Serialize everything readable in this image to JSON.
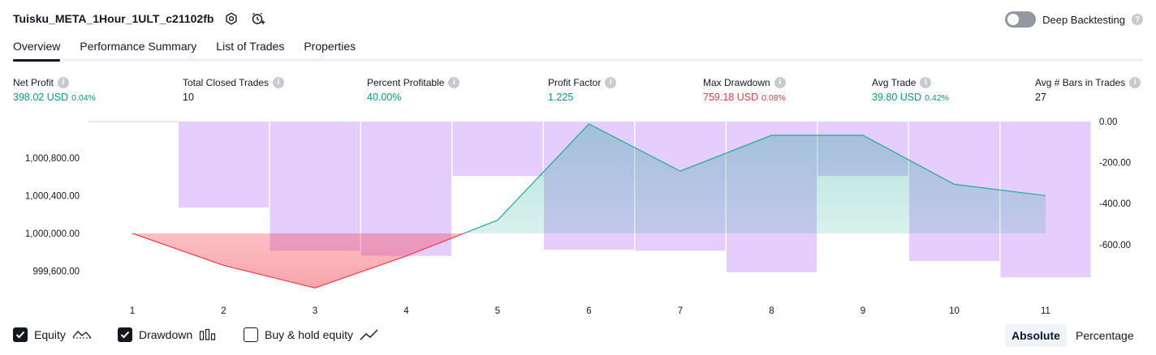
{
  "header": {
    "strategy_name": "Tuisku_META_1Hour_1ULT_c21102fb",
    "icons": [
      "settings-icon",
      "alert-add-icon"
    ],
    "deep_backtesting_label": "Deep Backtesting",
    "deep_backtesting_enabled": false,
    "help_glyph": "?"
  },
  "tabs": [
    {
      "label": "Overview",
      "active": true
    },
    {
      "label": "Performance Summary",
      "active": false
    },
    {
      "label": "List of Trades",
      "active": false
    },
    {
      "label": "Properties",
      "active": false
    }
  ],
  "metrics": [
    {
      "label": "Net Profit",
      "value": "398.02 USD",
      "sub": "0.04%",
      "tone": "pos"
    },
    {
      "label": "Total Closed Trades",
      "value": "10",
      "sub": "",
      "tone": "neutral"
    },
    {
      "label": "Percent Profitable",
      "value": "40.00%",
      "sub": "",
      "tone": "pos"
    },
    {
      "label": "Profit Factor",
      "value": "1.225",
      "sub": "",
      "tone": "pos"
    },
    {
      "label": "Max Drawdown",
      "value": "759.18 USD",
      "sub": "0.08%",
      "tone": "neg"
    },
    {
      "label": "Avg Trade",
      "value": "39.80 USD",
      "sub": "0.42%",
      "tone": "pos"
    },
    {
      "label": "Avg # Bars in Trades",
      "value": "27",
      "sub": "",
      "tone": "neutral"
    }
  ],
  "chart_data": {
    "type": "line",
    "x": [
      1,
      2,
      3,
      4,
      5,
      6,
      7,
      8,
      9,
      10,
      11
    ],
    "left_ticks": [
      "1,000,800.00",
      "1,000,400.00",
      "1,000,000.00",
      "999,600.00"
    ],
    "right_ticks": [
      "0.00",
      "-200.00",
      "-400.00",
      "-600.00"
    ],
    "series": [
      {
        "name": "Equity",
        "axis": "left",
        "values": [
          1000000,
          999660,
          999420,
          999760,
          1000140,
          1001160,
          1000660,
          1001040,
          1001040,
          1000520,
          1000400
        ],
        "colors": {
          "above": "#22ab94",
          "below": "#f23645"
        }
      },
      {
        "name": "Drawdown",
        "axis": "right",
        "kind": "bar",
        "values": [
          0,
          -420,
          -630,
          -655,
          -265,
          -625,
          -630,
          -735,
          -265,
          -680,
          -760
        ],
        "color": "#e1c4fd"
      }
    ],
    "left_range": [
      999380,
      1001185
    ],
    "right_range": [
      -830,
      0
    ],
    "baseline": 1000000
  },
  "legend": [
    {
      "label": "Equity",
      "checked": true,
      "icon": "equity-line-icon"
    },
    {
      "label": "Drawdown",
      "checked": true,
      "icon": "drawdown-bars-icon"
    },
    {
      "label": "Buy & hold equity",
      "checked": false,
      "icon": "buy-hold-line-icon"
    }
  ],
  "modes": [
    {
      "label": "Absolute",
      "active": true
    },
    {
      "label": "Percentage",
      "active": false
    }
  ]
}
